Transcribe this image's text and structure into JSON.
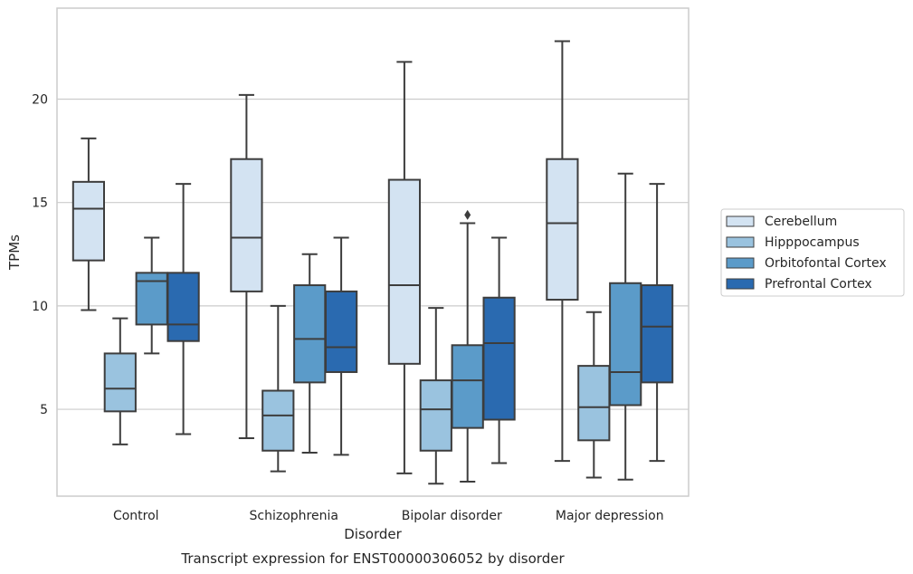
{
  "chart_data": {
    "type": "box",
    "caption": "Transcript expression for ENST00000306052 by disorder",
    "xlabel": "Disorder",
    "ylabel": "TPMs",
    "ylim": [
      0.8,
      24.4
    ],
    "yticks": [
      5,
      10,
      15,
      20
    ],
    "grid": true,
    "legend_position": "right",
    "categories": [
      "Control",
      "Schizophrenia",
      "Bipolar disorder",
      "Major depression"
    ],
    "series": [
      {
        "name": "Cerebellum",
        "color": "#d3e3f2",
        "boxes": [
          {
            "low": 9.8,
            "q1": 12.2,
            "median": 14.7,
            "q3": 16.0,
            "high": 18.1,
            "outliers": []
          },
          {
            "low": 3.6,
            "q1": 10.7,
            "median": 13.3,
            "q3": 17.1,
            "high": 20.2,
            "outliers": []
          },
          {
            "low": 1.9,
            "q1": 7.2,
            "median": 11.0,
            "q3": 16.1,
            "high": 21.8,
            "outliers": []
          },
          {
            "low": 2.5,
            "q1": 10.3,
            "median": 14.0,
            "q3": 17.1,
            "high": 22.8,
            "outliers": []
          }
        ]
      },
      {
        "name": "Hipppocampus",
        "color": "#9ac3df",
        "boxes": [
          {
            "low": 3.3,
            "q1": 4.9,
            "median": 6.0,
            "q3": 7.7,
            "high": 9.4,
            "outliers": []
          },
          {
            "low": 2.0,
            "q1": 3.0,
            "median": 4.7,
            "q3": 5.9,
            "high": 10.0,
            "outliers": []
          },
          {
            "low": 1.4,
            "q1": 3.0,
            "median": 5.0,
            "q3": 6.4,
            "high": 9.9,
            "outliers": []
          },
          {
            "low": 1.7,
            "q1": 3.5,
            "median": 5.1,
            "q3": 7.1,
            "high": 9.7,
            "outliers": []
          }
        ]
      },
      {
        "name": "Orbitofontal Cortex",
        "color": "#5b9bc9",
        "boxes": [
          {
            "low": 7.7,
            "q1": 9.1,
            "median": 11.2,
            "q3": 11.6,
            "high": 13.3,
            "outliers": []
          },
          {
            "low": 2.9,
            "q1": 6.3,
            "median": 8.4,
            "q3": 11.0,
            "high": 12.5,
            "outliers": []
          },
          {
            "low": 1.5,
            "q1": 4.1,
            "median": 6.4,
            "q3": 8.1,
            "high": 14.0,
            "outliers": [
              14.4
            ]
          },
          {
            "low": 1.6,
            "q1": 5.2,
            "median": 6.8,
            "q3": 11.1,
            "high": 16.4,
            "outliers": []
          }
        ]
      },
      {
        "name": "Prefrontal Cortex",
        "color": "#2a6ab0",
        "boxes": [
          {
            "low": 3.8,
            "q1": 8.3,
            "median": 9.1,
            "q3": 11.6,
            "high": 15.9,
            "outliers": []
          },
          {
            "low": 2.8,
            "q1": 6.8,
            "median": 8.0,
            "q3": 10.7,
            "high": 13.3,
            "outliers": []
          },
          {
            "low": 2.4,
            "q1": 4.5,
            "median": 8.2,
            "q3": 10.4,
            "high": 13.3,
            "outliers": []
          },
          {
            "low": 2.5,
            "q1": 6.3,
            "median": 9.0,
            "q3": 11.0,
            "high": 15.9,
            "outliers": []
          }
        ]
      }
    ]
  }
}
